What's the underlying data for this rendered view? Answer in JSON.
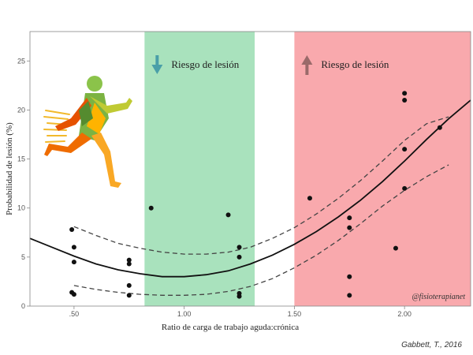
{
  "chart_data": {
    "type": "scatter",
    "xlabel": "Ratio de carga de trabajo aguda:crónica",
    "ylabel": "Probabilidad de lesión (%)",
    "xlim": [
      0.3,
      2.3
    ],
    "ylim": [
      0,
      28
    ],
    "x_ticks": [
      0.5,
      1.0,
      1.5,
      2.0
    ],
    "x_tick_labels": [
      ".50",
      "1.00",
      "1.50",
      "2.00"
    ],
    "y_ticks": [
      0,
      5,
      10,
      15,
      20,
      25
    ],
    "y_tick_labels": [
      "0",
      "5",
      "10",
      "15",
      "20",
      "25"
    ],
    "grid": false,
    "bands": [
      {
        "x": [
          0.82,
          1.32
        ],
        "color": "#a9e2bd",
        "label": "Riesgo de lesión",
        "arrow": "down",
        "arrow_color": "#4a9fa8"
      },
      {
        "x": [
          1.5,
          2.3
        ],
        "color": "#f9a9ad",
        "label": "Riesgo de lesión",
        "arrow": "up",
        "arrow_color": "#9a6a6a"
      }
    ],
    "points": [
      {
        "x": 0.49,
        "y": 7.8
      },
      {
        "x": 0.5,
        "y": 6.0
      },
      {
        "x": 0.5,
        "y": 4.5
      },
      {
        "x": 0.49,
        "y": 1.4
      },
      {
        "x": 0.5,
        "y": 1.2
      },
      {
        "x": 0.75,
        "y": 4.7
      },
      {
        "x": 0.75,
        "y": 4.3
      },
      {
        "x": 0.75,
        "y": 2.1
      },
      {
        "x": 0.75,
        "y": 1.1
      },
      {
        "x": 0.85,
        "y": 10.0
      },
      {
        "x": 1.2,
        "y": 9.3
      },
      {
        "x": 1.25,
        "y": 6.0
      },
      {
        "x": 1.25,
        "y": 5.0
      },
      {
        "x": 1.25,
        "y": 1.3
      },
      {
        "x": 1.25,
        "y": 1.0
      },
      {
        "x": 1.57,
        "y": 11.0
      },
      {
        "x": 1.75,
        "y": 9.0
      },
      {
        "x": 1.75,
        "y": 8.0
      },
      {
        "x": 1.75,
        "y": 3.0
      },
      {
        "x": 1.75,
        "y": 1.1
      },
      {
        "x": 1.96,
        "y": 5.9
      },
      {
        "x": 2.0,
        "y": 21.7
      },
      {
        "x": 2.0,
        "y": 21.0
      },
      {
        "x": 2.0,
        "y": 16.0
      },
      {
        "x": 2.0,
        "y": 12.0
      },
      {
        "x": 2.16,
        "y": 18.2
      }
    ],
    "point_color": "#111111",
    "fit_curve": {
      "x": [
        0.3,
        0.4,
        0.5,
        0.6,
        0.7,
        0.8,
        0.9,
        1.0,
        1.1,
        1.2,
        1.3,
        1.4,
        1.5,
        1.6,
        1.7,
        1.8,
        1.9,
        2.0,
        2.1,
        2.2,
        2.3
      ],
      "y": [
        6.9,
        6.0,
        5.1,
        4.3,
        3.7,
        3.3,
        3.0,
        3.0,
        3.2,
        3.6,
        4.3,
        5.2,
        6.3,
        7.6,
        9.1,
        10.8,
        12.7,
        14.8,
        17.0,
        19.1,
        21.0
      ],
      "color": "#111111"
    },
    "ci_upper": {
      "x": [
        0.5,
        0.6,
        0.7,
        0.8,
        0.9,
        1.0,
        1.1,
        1.2,
        1.3,
        1.4,
        1.5,
        1.6,
        1.7,
        1.8,
        1.9,
        2.0,
        2.1,
        2.2
      ],
      "y": [
        8.1,
        7.2,
        6.4,
        5.9,
        5.5,
        5.3,
        5.3,
        5.5,
        6.0,
        6.9,
        8.0,
        9.4,
        11.0,
        12.8,
        14.8,
        16.9,
        18.6,
        19.3
      ]
    },
    "ci_lower": {
      "x": [
        0.5,
        0.6,
        0.7,
        0.8,
        0.9,
        1.0,
        1.1,
        1.2,
        1.3,
        1.4,
        1.5,
        1.6,
        1.7,
        1.8,
        1.9,
        2.0,
        2.1,
        2.2
      ],
      "y": [
        2.1,
        1.7,
        1.4,
        1.2,
        1.1,
        1.1,
        1.2,
        1.5,
        2.0,
        2.8,
        3.9,
        5.2,
        6.7,
        8.4,
        10.2,
        11.8,
        13.2,
        14.4
      ]
    },
    "watermark": "@fisioterapianet"
  },
  "source": "Gabbett, T., 2016"
}
